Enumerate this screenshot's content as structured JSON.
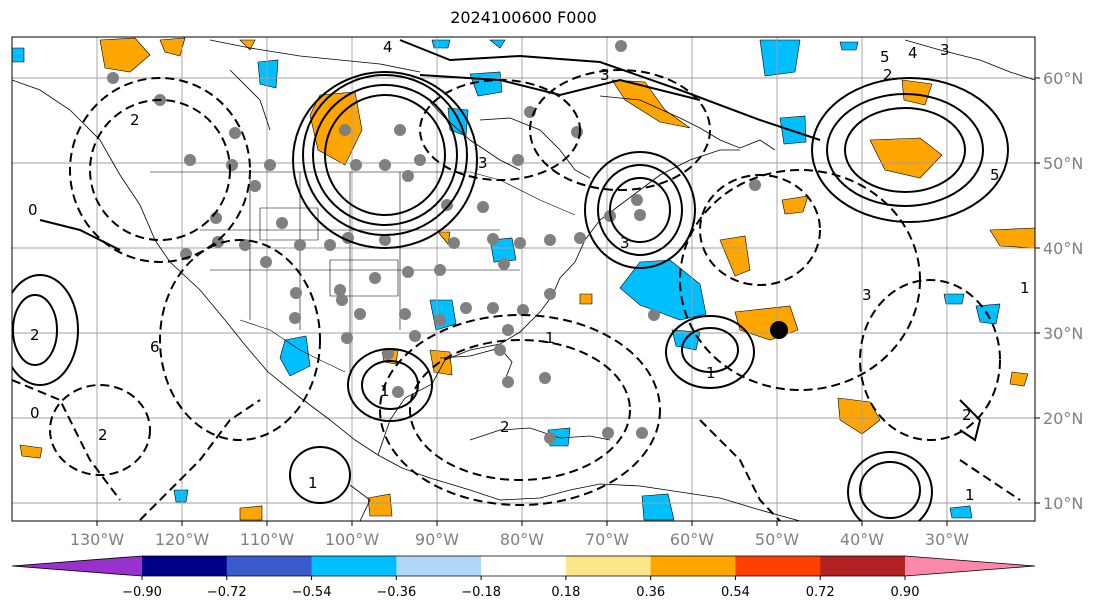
{
  "title": "2024100600 F000",
  "lat_labels": [
    "60°N",
    "50°N",
    "40°N",
    "30°N",
    "20°N",
    "10°N"
  ],
  "lat_values": [
    60,
    50,
    40,
    30,
    20,
    10
  ],
  "lon_labels": [
    "130°W",
    "120°W",
    "110°W",
    "100°W",
    "90°W",
    "80°W",
    "70°W",
    "60°W",
    "50°W",
    "40°W",
    "30°W"
  ],
  "lon_values": [
    -130,
    -120,
    -110,
    -100,
    -90,
    -80,
    -70,
    -60,
    -50,
    -40,
    -30
  ],
  "colorbar": {
    "colors": [
      "#9932cc",
      "#00008b",
      "#3a5bcc",
      "#00bfff",
      "#add8f7",
      "#ffffff",
      "#fce68a",
      "#ffa500",
      "#ff4000",
      "#b22222",
      "#ff88aa"
    ],
    "tick_labels": [
      "−0.90",
      "−0.72",
      "−0.54",
      "−0.36",
      "−0.18",
      "0.18",
      "0.36",
      "0.54",
      "0.72",
      "0.90"
    ],
    "extend": "both"
  },
  "contour_labels": [
    "4",
    "3",
    "5",
    "4",
    "3",
    "2",
    "2",
    "3",
    "1",
    "2",
    "0",
    "3",
    "5",
    "2",
    "1",
    "0",
    "1",
    "1",
    "3",
    "2",
    "1",
    "6",
    "1",
    "2"
  ],
  "map_features": {
    "projection": "PlateCarree",
    "grid": true,
    "shading_positive": "#ffa500",
    "shading_negative": "#00bfff",
    "marker": "black-dot"
  }
}
